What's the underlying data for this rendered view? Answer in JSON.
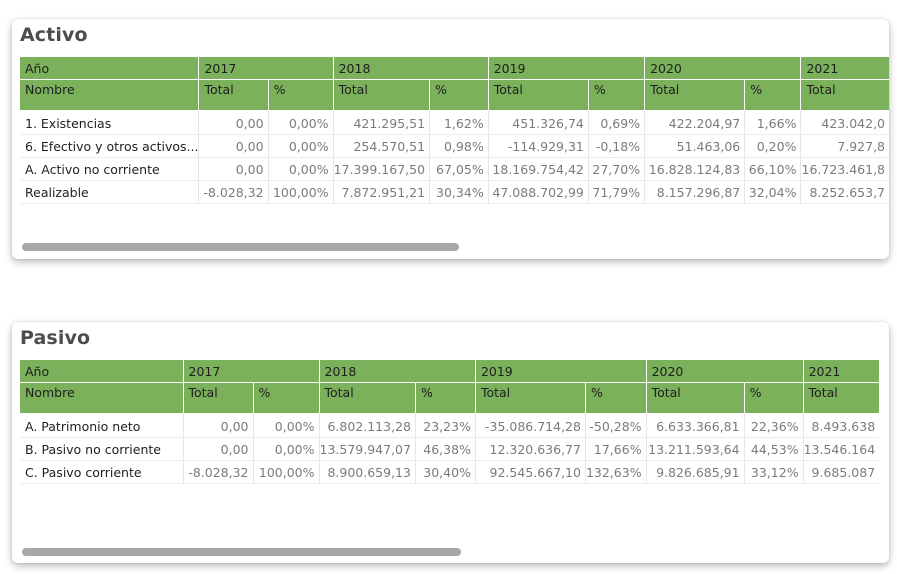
{
  "activo": {
    "title": "Activo",
    "header_year_label": "Año",
    "header_name_label": "Nombre",
    "years": [
      "2017",
      "2018",
      "2019",
      "2020",
      "2021"
    ],
    "total_label": "Total",
    "pct_label": "%",
    "rows": [
      {
        "name": "1. Existencias",
        "cells": [
          "0,00",
          "0,00%",
          "421.295,51",
          "1,62%",
          "451.326,74",
          "0,69%",
          "422.204,97",
          "1,66%",
          "423.042,0"
        ]
      },
      {
        "name": "6. Efectivo y otros activos...",
        "cells": [
          "0,00",
          "0,00%",
          "254.570,51",
          "0,98%",
          "-114.929,31",
          "-0,18%",
          "51.463,06",
          "0,20%",
          "7.927,8"
        ]
      },
      {
        "name": "A. Activo no corriente",
        "cells": [
          "0,00",
          "0,00%",
          "17.399.167,50",
          "67,05%",
          "18.169.754,42",
          "27,70%",
          "16.828.124,83",
          "66,10%",
          "16.723.461,8"
        ]
      },
      {
        "name": "Realizable",
        "cells": [
          "-8.028,32",
          "100,00%",
          "7.872.951,21",
          "30,34%",
          "47.088.702,99",
          "71,79%",
          "8.157.296,87",
          "32,04%",
          "8.252.653,7"
        ]
      }
    ],
    "scroll_position": 0
  },
  "pasivo": {
    "title": "Pasivo",
    "header_year_label": "Año",
    "header_name_label": "Nombre",
    "years": [
      "2017",
      "2018",
      "2019",
      "2020",
      "2021"
    ],
    "total_label": "Total",
    "pct_label": "%",
    "rows": [
      {
        "name": "A. Patrimonio neto",
        "cells": [
          "0,00",
          "0,00%",
          "6.802.113,28",
          "23,23%",
          "-35.086.714,28",
          "-50,28%",
          "6.633.366,81",
          "22,36%",
          "8.493.638"
        ]
      },
      {
        "name": "B. Pasivo no corriente",
        "cells": [
          "0,00",
          "0,00%",
          "13.579.947,07",
          "46,38%",
          "12.320.636,77",
          "17,66%",
          "13.211.593,64",
          "44,53%",
          "13.546.164"
        ]
      },
      {
        "name": "C. Pasivo corriente",
        "cells": [
          "-8.028,32",
          "100,00%",
          "8.900.659,13",
          "30,40%",
          "92.545.667,10",
          "132,63%",
          "9.826.685,91",
          "33,12%",
          "9.685.087"
        ]
      }
    ],
    "scroll_position": 0
  },
  "colors": {
    "header_bg": "#7bb15b",
    "scrollbar": "#a8a8a8"
  }
}
